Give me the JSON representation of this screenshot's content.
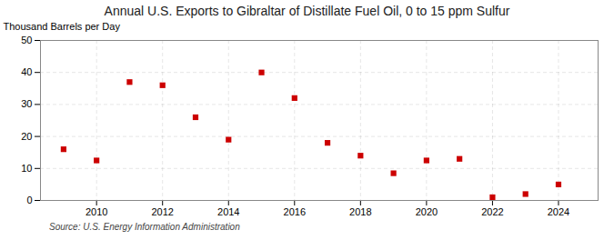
{
  "chart_data": {
    "type": "scatter",
    "title": "Annual U.S. Exports to Gibraltar of Distillate Fuel Oil, 0 to 15 ppm Sulfur",
    "ylabel": "Thousand Barrels per Day",
    "source": "Source: U.S. Energy Information Administration",
    "x": [
      2009,
      2010,
      2011,
      2012,
      2013,
      2014,
      2015,
      2016,
      2017,
      2018,
      2019,
      2020,
      2021,
      2022,
      2023,
      2024
    ],
    "values": [
      16.0,
      12.5,
      37.0,
      36.0,
      26.0,
      19.0,
      40.0,
      32.0,
      18.0,
      14.0,
      8.5,
      12.5,
      13.0,
      1.0,
      2.0,
      5.0
    ],
    "color": "#cc0000",
    "marker": "square",
    "xlim": [
      2008.3,
      2025.2
    ],
    "xticks": [
      2010,
      2012,
      2014,
      2016,
      2018,
      2020,
      2022,
      2024
    ],
    "ylim": [
      0,
      50
    ],
    "yticks": [
      0,
      10,
      20,
      30,
      40,
      50
    ],
    "grid": true
  }
}
